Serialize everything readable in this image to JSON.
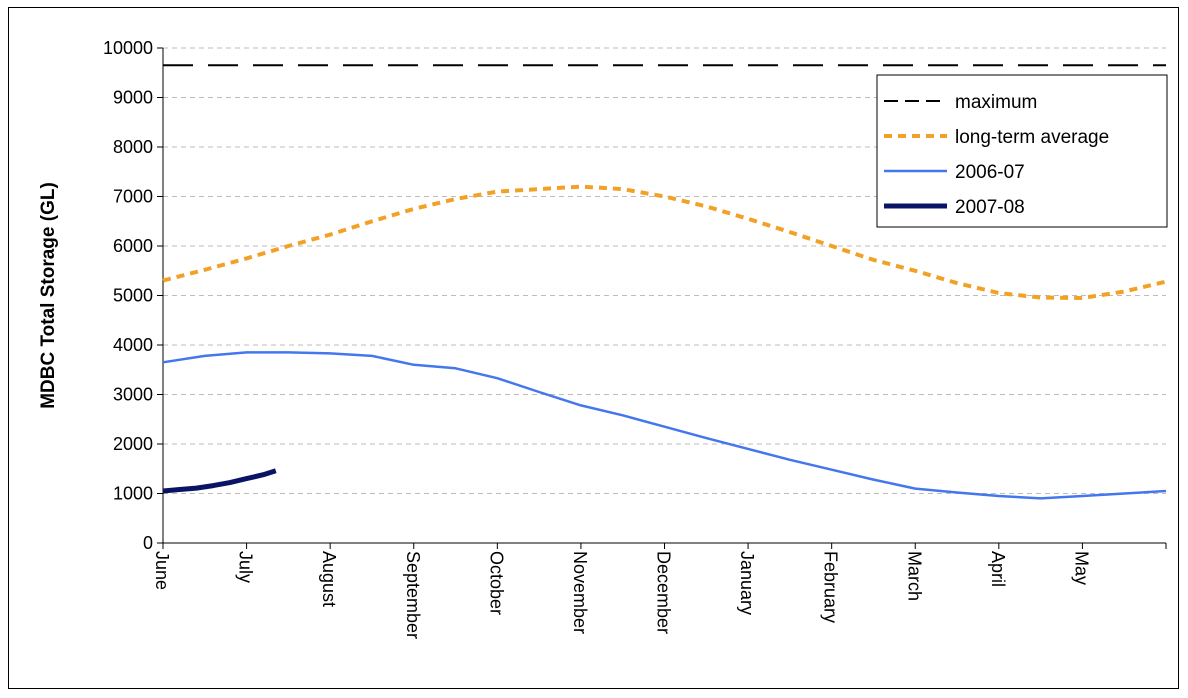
{
  "chart_data": {
    "type": "line",
    "title": "",
    "xlabel": "",
    "ylabel": "MDBC Total Storage (GL)",
    "ylim": [
      0,
      10000
    ],
    "yticks": [
      0,
      1000,
      2000,
      3000,
      4000,
      5000,
      6000,
      7000,
      8000,
      9000,
      10000
    ],
    "xlim": [
      0,
      12
    ],
    "categories": [
      "June",
      "July",
      "August",
      "September",
      "October",
      "November",
      "December",
      "January",
      "February",
      "March",
      "April",
      "May"
    ],
    "grid": "horizontal dashed",
    "legend_position": "top-right",
    "series": [
      {
        "name": "maximum",
        "color": "#000000",
        "style": "long-dash",
        "x": [
          0,
          12
        ],
        "values": [
          9650,
          9650
        ]
      },
      {
        "name": "long-term average",
        "color": "#F2A127",
        "style": "dotted",
        "x": [
          0,
          0.5,
          1,
          1.5,
          2,
          2.5,
          3,
          3.5,
          4,
          4.5,
          5,
          5.5,
          6,
          6.5,
          7,
          7.5,
          8,
          8.5,
          9,
          9.5,
          10,
          10.5,
          11,
          11.5,
          12
        ],
        "values": [
          5300,
          5520,
          5750,
          6000,
          6230,
          6500,
          6750,
          6950,
          7100,
          7150,
          7200,
          7150,
          7000,
          6800,
          6550,
          6280,
          6000,
          5720,
          5500,
          5250,
          5050,
          4960,
          4950,
          5080,
          5280
        ]
      },
      {
        "name": "2006-07",
        "color": "#4477EE",
        "style": "solid",
        "x": [
          0,
          0.5,
          1,
          1.5,
          2,
          2.5,
          3,
          3.5,
          4,
          4.5,
          5,
          5.5,
          6,
          6.5,
          7,
          7.5,
          8,
          8.5,
          9,
          9.5,
          10,
          10.5,
          11,
          11.5,
          12
        ],
        "values": [
          3650,
          3780,
          3850,
          3850,
          3830,
          3780,
          3600,
          3530,
          3330,
          3050,
          2780,
          2580,
          2350,
          2120,
          1900,
          1680,
          1480,
          1280,
          1100,
          1020,
          950,
          900,
          950,
          1000,
          1050
        ]
      },
      {
        "name": "2007-08",
        "color": "#0B1464",
        "style": "thick-solid",
        "x": [
          0,
          0.2,
          0.4,
          0.6,
          0.8,
          1.0,
          1.2,
          1.35
        ],
        "values": [
          1050,
          1080,
          1110,
          1160,
          1220,
          1300,
          1380,
          1460
        ]
      }
    ]
  }
}
